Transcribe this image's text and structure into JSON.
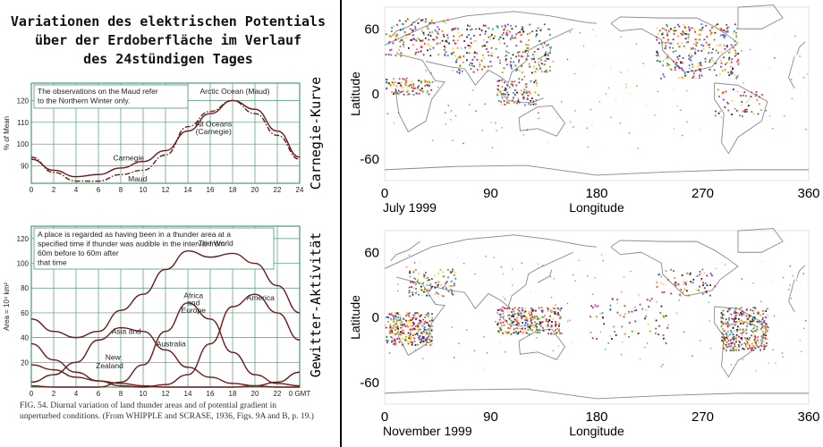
{
  "title": {
    "line1": "Variationen des elektrischen Potentials",
    "line2": "über der Erdoberfläche im Verlauf",
    "line3": "des 24stündigen Tages"
  },
  "caption": "FIG. 54. Diurnal variation of land thunder areas and of potential gradient in unperturbed conditions. (From WHIPPLE and SCRASE, 1936, Figs. 9A and B, p. 19.)",
  "chart_data": [
    {
      "type": "line",
      "side_label": "Carnegie-Kurve",
      "note_lines": [
        "The observations on the Maud refer",
        "to the Northern Winter only."
      ],
      "ylabel": "% of Mean",
      "xlim": [
        0,
        24
      ],
      "ylim": [
        82,
        128
      ],
      "x_ticks": [
        "0",
        "2",
        "4",
        "6",
        "8",
        "10",
        "12",
        "14",
        "16",
        "18",
        "20",
        "22",
        "24"
      ],
      "y_ticks": [
        "90",
        "100",
        "110",
        "120"
      ],
      "x": [
        0,
        2,
        4,
        6,
        8,
        10,
        12,
        14,
        16,
        18,
        20,
        22,
        24
      ],
      "series": [
        {
          "name": "Carnegie",
          "values": [
            93,
            88,
            85,
            86,
            89,
            92,
            97,
            106,
            114,
            120,
            116,
            106,
            94
          ]
        },
        {
          "name": "Arctic Ocean (Maud)",
          "values": [
            94,
            87,
            83,
            83,
            86,
            88,
            95,
            108,
            115,
            120,
            114,
            104,
            93
          ]
        }
      ],
      "labels": {
        "arctic": "Arctic Ocean (Maud)",
        "allocean1": "All Oceans",
        "allocean2": "(Carnegie)",
        "carnegie": "Carnegie",
        "maud": "Maud"
      }
    },
    {
      "type": "line",
      "side_label": "Gewitter-Aktivität",
      "note_lines": [
        "A place is regarded as having been in a thunder area at a",
        "specified time if thunder was audible in the interval from",
        "60m before to 60m after",
        "that time"
      ],
      "ylabel": "Area = 10⁴ km²",
      "xlim": [
        0,
        24
      ],
      "ylim": [
        0,
        130
      ],
      "x_ticks": [
        "0",
        "2",
        "4",
        "6",
        "8",
        "10",
        "12",
        "14",
        "16",
        "18",
        "20",
        "22",
        "0 GMT"
      ],
      "y_ticks": [
        "20",
        "40",
        "60",
        "80",
        "100",
        "120"
      ],
      "x": [
        0,
        2,
        4,
        6,
        8,
        10,
        12,
        14,
        16,
        18,
        20,
        22,
        24
      ],
      "series": [
        {
          "name": "The World",
          "values": [
            55,
            45,
            40,
            45,
            62,
            75,
            95,
            110,
            105,
            108,
            100,
            82,
            60
          ]
        },
        {
          "name": "Asia and Australia",
          "values": [
            4,
            10,
            20,
            38,
            48,
            45,
            30,
            16,
            8,
            3,
            1,
            0,
            0
          ]
        },
        {
          "name": "Africa and Europe",
          "values": [
            1,
            0,
            0,
            0,
            4,
            18,
            45,
            68,
            55,
            28,
            10,
            3,
            1
          ]
        },
        {
          "name": "America",
          "values": [
            35,
            22,
            12,
            5,
            1,
            0,
            2,
            10,
            35,
            65,
            75,
            60,
            38
          ]
        },
        {
          "name": "New Zealand",
          "values": [
            18,
            14,
            8,
            5,
            3,
            1,
            0,
            0,
            0,
            0,
            1,
            4,
            12
          ]
        }
      ],
      "labels": {
        "world": "The World",
        "africa1": "Africa",
        "africa2": "and",
        "africa3": "Europe",
        "america": "America",
        "asia1": "Asia and",
        "asia2": "Australia",
        "nz1": "New",
        "nz2": "Zealand"
      }
    },
    {
      "type": "scatter",
      "date_label": "July 1999",
      "xlabel": "Longitude",
      "ylabel": "Latitude",
      "xlim": [
        0,
        360
      ],
      "ylim": [
        -80,
        80
      ],
      "x_ticks": [
        "0",
        "90",
        "180",
        "270",
        "360"
      ],
      "y_ticks": [
        "60",
        "0",
        "-60"
      ],
      "regions": [
        {
          "lon": [
            0,
            60
          ],
          "lat": [
            35,
            70
          ],
          "weight": 0.5
        },
        {
          "lon": [
            60,
            140
          ],
          "lat": [
            20,
            65
          ],
          "weight": 0.8
        },
        {
          "lon": [
            230,
            300
          ],
          "lat": [
            15,
            65
          ],
          "weight": 0.9
        },
        {
          "lon": [
            0,
            40
          ],
          "lat": [
            0,
            15
          ],
          "weight": 0.3
        },
        {
          "lon": [
            95,
            130
          ],
          "lat": [
            -10,
            15
          ],
          "weight": 0.3
        },
        {
          "lon": [
            280,
            320
          ],
          "lat": [
            -20,
            5
          ],
          "weight": 0.15
        }
      ]
    },
    {
      "type": "scatter",
      "date_label": "November 1999",
      "xlabel": "Longitude",
      "ylabel": "Latitude",
      "xlim": [
        0,
        360
      ],
      "ylim": [
        -80,
        80
      ],
      "x_ticks": [
        "0",
        "90",
        "180",
        "270",
        "360"
      ],
      "y_ticks": [
        "60",
        "0",
        "-60"
      ],
      "regions": [
        {
          "lon": [
            0,
            40
          ],
          "lat": [
            -25,
            5
          ],
          "weight": 0.9
        },
        {
          "lon": [
            95,
            150
          ],
          "lat": [
            -15,
            10
          ],
          "weight": 0.8
        },
        {
          "lon": [
            285,
            325
          ],
          "lat": [
            -30,
            10
          ],
          "weight": 1.0
        },
        {
          "lon": [
            20,
            60
          ],
          "lat": [
            20,
            45
          ],
          "weight": 0.3
        },
        {
          "lon": [
            170,
            240
          ],
          "lat": [
            -20,
            20
          ],
          "weight": 0.2
        },
        {
          "lon": [
            230,
            280
          ],
          "lat": [
            20,
            45
          ],
          "weight": 0.2
        }
      ]
    }
  ],
  "colors": {
    "grid": "#4a9a76",
    "line": "#6b1a1a",
    "dots": [
      "#d81b60",
      "#e53935",
      "#fb8c00",
      "#fdd835",
      "#43a047",
      "#1e88e5",
      "#8e24aa",
      "#212121"
    ]
  }
}
